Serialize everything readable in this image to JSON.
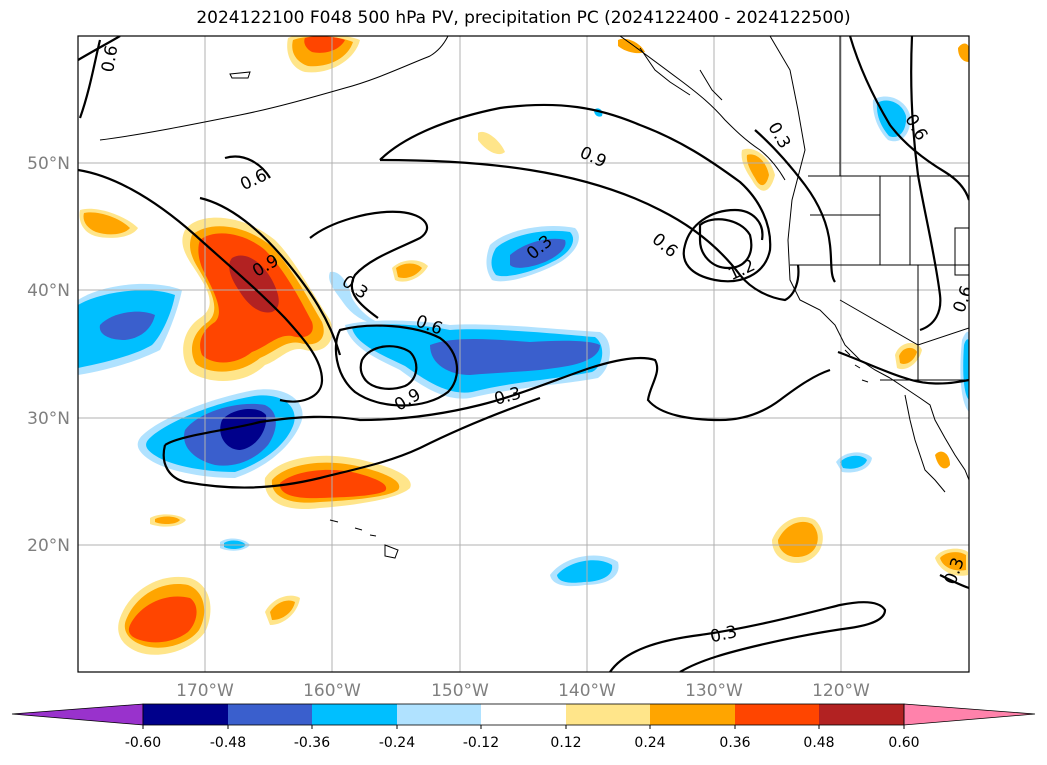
{
  "title": "2024122100 F048 500 hPa PV, precipitation PC (2024122400 - 2024122500)",
  "latitude_labels": [
    "50°N",
    "40°N",
    "30°N",
    "20°N"
  ],
  "longitude_labels": [
    "170°W",
    "160°W",
    "150°W",
    "140°W",
    "130°W",
    "120°W"
  ],
  "contour_labels": [
    "0.6",
    "0.6",
    "0.9",
    "0.3",
    "0.6",
    "0.9",
    "0.3",
    "0.9",
    "0.6",
    "1.2",
    "0.3",
    "0.6",
    "0.3",
    "0.3",
    "0.3",
    "0.6"
  ],
  "colorbar": {
    "tick_labels": [
      "-0.60",
      "-0.48",
      "-0.36",
      "-0.24",
      "-0.12",
      "0.12",
      "0.24",
      "0.36",
      "0.48",
      "0.60"
    ],
    "colors": [
      "#9932cc",
      "#00008b",
      "#3a5fcd",
      "#00bfff",
      "#b0e2ff",
      "#ffffff",
      "#ffe58a",
      "#ffa500",
      "#ff4500",
      "#b22222",
      "#ff82ab"
    ]
  },
  "chart_data": {
    "type": "map",
    "title": "2024122100 F048 500 hPa PV, precipitation PC (2024122400 - 2024122500)",
    "fields": [
      "500 hPa PV (contours)",
      "precipitation PC (filled)"
    ],
    "contour_levels": [
      0.3,
      0.6,
      0.9,
      1.2
    ],
    "color_levels": [
      -0.6,
      -0.48,
      -0.36,
      -0.24,
      -0.12,
      0.12,
      0.24,
      0.36,
      0.48,
      0.6
    ],
    "lat_range": [
      10,
      60
    ],
    "lon_range": [
      -180,
      -110
    ],
    "grid": true
  }
}
